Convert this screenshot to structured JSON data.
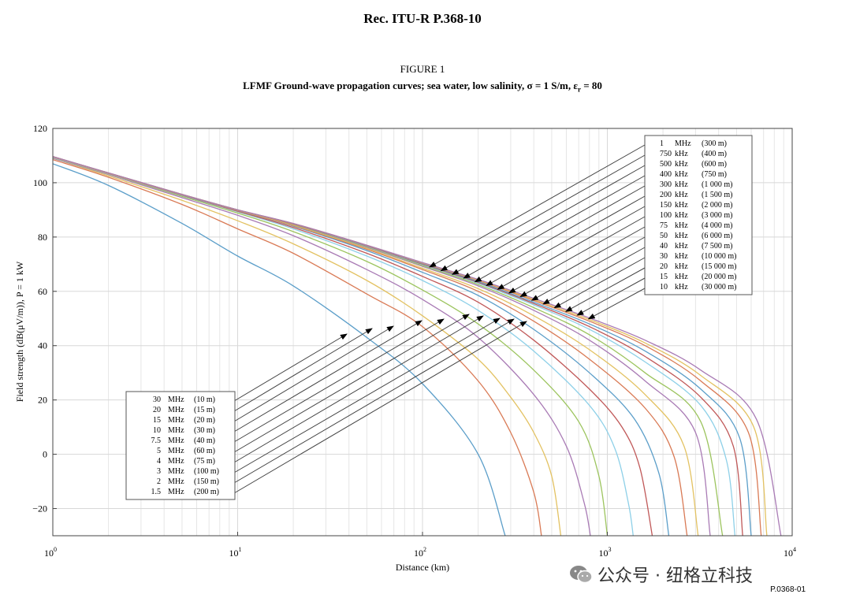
{
  "header": {
    "doc_title": "Rec.  ITU-R P.368-10",
    "figure_label": "FIGURE 1"
  },
  "figure_title_parts": [
    "LFMF Ground-wave propagation curves; sea water, low salinity, ",
    "σ",
    " = 1 S/m, ",
    "ε",
    "r",
    " = 80"
  ],
  "watermark": {
    "text": "公众号 · 纽格立科技",
    "icon": "wechat-icon"
  },
  "figure_ref": "P.0368-01",
  "chart_data": {
    "type": "line",
    "xlabel": "Distance (km)",
    "ylabel": "Field strength (dB(μV/m)), P = 1 kW",
    "x_scale": "log",
    "xlim": [
      1,
      10000
    ],
    "ylim": [
      -30,
      120
    ],
    "x_ticks": [
      {
        "value": 1,
        "base": "10",
        "exp": "0"
      },
      {
        "value": 10,
        "base": "10",
        "exp": "1"
      },
      {
        "value": 100,
        "base": "10",
        "exp": "2"
      },
      {
        "value": 1000,
        "base": "10",
        "exp": "3"
      },
      {
        "value": 10000,
        "base": "10",
        "exp": "4"
      }
    ],
    "y_ticks": [
      {
        "value": 120,
        "label": "120"
      },
      {
        "value": 100,
        "label": "100"
      },
      {
        "value": 80,
        "label": "80"
      },
      {
        "value": 60,
        "label": "60"
      },
      {
        "value": 40,
        "label": "40"
      },
      {
        "value": 20,
        "label": "20"
      },
      {
        "value": 0,
        "label": "0"
      },
      {
        "value": -20,
        "label": "−20"
      }
    ],
    "grid": true,
    "low_band_legend": {
      "placement": "lower-left",
      "entries": [
        {
          "freq": "30",
          "unit": "MHz",
          "wl": "(10 m)"
        },
        {
          "freq": "20",
          "unit": "MHz",
          "wl": "(15 m)"
        },
        {
          "freq": "15",
          "unit": "MHz",
          "wl": "(20 m)"
        },
        {
          "freq": "10",
          "unit": "MHz",
          "wl": "(30 m)"
        },
        {
          "freq": "7.5",
          "unit": "MHz",
          "wl": "(40 m)"
        },
        {
          "freq": "5",
          "unit": "MHz",
          "wl": "(60 m)"
        },
        {
          "freq": "4",
          "unit": "MHz",
          "wl": "(75 m)"
        },
        {
          "freq": "3",
          "unit": "MHz",
          "wl": "(100 m)"
        },
        {
          "freq": "2",
          "unit": "MHz",
          "wl": "(150 m)"
        },
        {
          "freq": "1.5",
          "unit": "MHz",
          "wl": "(200 m)"
        }
      ]
    },
    "high_band_legend": {
      "placement": "top-right",
      "entries": [
        {
          "freq": "1",
          "unit": "MHz",
          "wl": "(300 m)"
        },
        {
          "freq": "750",
          "unit": "kHz",
          "wl": "(400 m)"
        },
        {
          "freq": "500",
          "unit": "kHz",
          "wl": "(600 m)"
        },
        {
          "freq": "400",
          "unit": "kHz",
          "wl": "(750 m)"
        },
        {
          "freq": "300",
          "unit": "kHz",
          "wl": "(1 000 m)"
        },
        {
          "freq": "200",
          "unit": "kHz",
          "wl": "(1 500 m)"
        },
        {
          "freq": "150",
          "unit": "kHz",
          "wl": "(2 000 m)"
        },
        {
          "freq": "100",
          "unit": "kHz",
          "wl": "(3 000 m)"
        },
        {
          "freq": "75",
          "unit": "kHz",
          "wl": "(4 000 m)"
        },
        {
          "freq": "50",
          "unit": "kHz",
          "wl": "(6 000 m)"
        },
        {
          "freq": "40",
          "unit": "kHz",
          "wl": "(7 500 m)"
        },
        {
          "freq": "30",
          "unit": "kHz",
          "wl": "(10 000 m)"
        },
        {
          "freq": "20",
          "unit": "kHz",
          "wl": "(15 000 m)"
        },
        {
          "freq": "15",
          "unit": "kHz",
          "wl": "(20 000 m)"
        },
        {
          "freq": "10",
          "unit": "kHz",
          "wl": "(30 000 m)"
        }
      ]
    },
    "series": [
      {
        "freq": "30 MHz",
        "color": "#5b9ec9",
        "points": [
          [
            1,
            107
          ],
          [
            2,
            99
          ],
          [
            5,
            85
          ],
          [
            10,
            73
          ],
          [
            20,
            62
          ],
          [
            50,
            43
          ],
          [
            100,
            26
          ],
          [
            200,
            0
          ],
          [
            280,
            -30
          ]
        ]
      },
      {
        "freq": "20 MHz",
        "color": "#d97a55",
        "points": [
          [
            1,
            108.5
          ],
          [
            2,
            102
          ],
          [
            5,
            92
          ],
          [
            10,
            83
          ],
          [
            20,
            74
          ],
          [
            50,
            59
          ],
          [
            100,
            47
          ],
          [
            200,
            27
          ],
          [
            300,
            8
          ],
          [
            400,
            -14
          ],
          [
            440,
            -30
          ]
        ]
      },
      {
        "freq": "15 MHz",
        "color": "#e3c262",
        "points": [
          [
            1,
            109
          ],
          [
            2,
            102.5
          ],
          [
            5,
            93.5
          ],
          [
            10,
            86
          ],
          [
            20,
            77.5
          ],
          [
            50,
            64
          ],
          [
            100,
            51
          ],
          [
            200,
            35
          ],
          [
            300,
            21
          ],
          [
            400,
            8
          ],
          [
            500,
            -8
          ],
          [
            560,
            -30
          ]
        ]
      },
      {
        "freq": "10 MHz",
        "color": "#a97bb5",
        "points": [
          [
            1,
            109
          ],
          [
            2,
            103
          ],
          [
            5,
            94.5
          ],
          [
            10,
            88
          ],
          [
            20,
            80.5
          ],
          [
            50,
            68
          ],
          [
            100,
            57
          ],
          [
            200,
            43
          ],
          [
            400,
            22
          ],
          [
            600,
            3
          ],
          [
            750,
            -18
          ],
          [
            810,
            -30
          ]
        ]
      },
      {
        "freq": "7.5 MHz",
        "color": "#9cc45e",
        "points": [
          [
            1,
            109.2
          ],
          [
            2,
            103.2
          ],
          [
            5,
            95
          ],
          [
            10,
            88.8
          ],
          [
            20,
            82
          ],
          [
            50,
            71
          ],
          [
            100,
            60.5
          ],
          [
            200,
            48
          ],
          [
            400,
            31
          ],
          [
            700,
            12
          ],
          [
            900,
            -8
          ],
          [
            1000,
            -30
          ]
        ]
      },
      {
        "freq": "5 MHz",
        "color": "#8ed0e8",
        "points": [
          [
            1,
            109.3
          ],
          [
            2,
            103.3
          ],
          [
            5,
            95.3
          ],
          [
            10,
            89.3
          ],
          [
            20,
            83
          ],
          [
            50,
            73
          ],
          [
            100,
            64
          ],
          [
            200,
            53
          ],
          [
            400,
            38
          ],
          [
            800,
            18
          ],
          [
            1100,
            2
          ],
          [
            1300,
            -18
          ],
          [
            1380,
            -30
          ]
        ]
      },
      {
        "freq": "4 MHz",
        "color": "#c05858",
        "points": [
          [
            1,
            109.4
          ],
          [
            2,
            103.4
          ],
          [
            5,
            95.4
          ],
          [
            10,
            89.5
          ],
          [
            20,
            83.5
          ],
          [
            50,
            74
          ],
          [
            100,
            65.5
          ],
          [
            200,
            56
          ],
          [
            400,
            42
          ],
          [
            800,
            24
          ],
          [
            1200,
            10
          ],
          [
            1500,
            -5
          ],
          [
            1750,
            -30
          ]
        ]
      },
      {
        "freq": "3 MHz",
        "color": "#5b9ec9",
        "points": [
          [
            1,
            109.5
          ],
          [
            2,
            103.5
          ],
          [
            5,
            95.5
          ],
          [
            10,
            89.7
          ],
          [
            20,
            84
          ],
          [
            50,
            75
          ],
          [
            100,
            67
          ],
          [
            200,
            58.5
          ],
          [
            400,
            46
          ],
          [
            800,
            30
          ],
          [
            1400,
            13
          ],
          [
            1900,
            -7
          ],
          [
            2150,
            -30
          ]
        ]
      },
      {
        "freq": "2 MHz",
        "color": "#d97a55",
        "points": [
          [
            1,
            109.5
          ],
          [
            2,
            103.5
          ],
          [
            5,
            95.6
          ],
          [
            10,
            89.8
          ],
          [
            20,
            84.2
          ],
          [
            50,
            75.5
          ],
          [
            100,
            68
          ],
          [
            200,
            60
          ],
          [
            400,
            49
          ],
          [
            800,
            35
          ],
          [
            1600,
            17
          ],
          [
            2300,
            -1
          ],
          [
            2700,
            -30
          ]
        ]
      },
      {
        "freq": "1.5 MHz",
        "color": "#e3c262",
        "points": [
          [
            1,
            109.5
          ],
          [
            2,
            103.5
          ],
          [
            5,
            95.6
          ],
          [
            10,
            89.9
          ],
          [
            20,
            84.4
          ],
          [
            50,
            75.8
          ],
          [
            100,
            68.5
          ],
          [
            200,
            61
          ],
          [
            400,
            51
          ],
          [
            800,
            38.5
          ],
          [
            1600,
            22
          ],
          [
            2600,
            3
          ],
          [
            3100,
            -30
          ]
        ]
      },
      {
        "freq": "1 MHz",
        "color": "#a97bb5",
        "points": [
          [
            1,
            109.6
          ],
          [
            2,
            103.6
          ],
          [
            5,
            95.7
          ],
          [
            10,
            90
          ],
          [
            20,
            84.6
          ],
          [
            50,
            76.2
          ],
          [
            100,
            69.2
          ],
          [
            200,
            62
          ],
          [
            400,
            53
          ],
          [
            800,
            42
          ],
          [
            1600,
            27
          ],
          [
            3000,
            8
          ],
          [
            3600,
            -30
          ]
        ]
      },
      {
        "freq": "750 kHz",
        "color": "#9cc45e",
        "points": [
          [
            1,
            109.6
          ],
          [
            2,
            103.6
          ],
          [
            5,
            95.7
          ],
          [
            10,
            90
          ],
          [
            20,
            84.7
          ],
          [
            50,
            76.4
          ],
          [
            100,
            69.5
          ],
          [
            200,
            62.5
          ],
          [
            400,
            54
          ],
          [
            800,
            44
          ],
          [
            1600,
            30
          ],
          [
            3200,
            12
          ],
          [
            4200,
            -30
          ]
        ]
      },
      {
        "freq": "500 kHz",
        "color": "#8ed0e8",
        "points": [
          [
            1,
            109.6
          ],
          [
            2,
            103.6
          ],
          [
            5,
            95.7
          ],
          [
            10,
            90
          ],
          [
            20,
            84.8
          ],
          [
            50,
            76.6
          ],
          [
            100,
            69.8
          ],
          [
            200,
            63
          ],
          [
            400,
            55
          ],
          [
            800,
            46
          ],
          [
            1600,
            34
          ],
          [
            3200,
            18
          ],
          [
            4400,
            -2
          ],
          [
            4900,
            -30
          ]
        ]
      },
      {
        "freq": "400 kHz",
        "color": "#c05858",
        "points": [
          [
            1,
            109.6
          ],
          [
            2,
            103.6
          ],
          [
            5,
            95.7
          ],
          [
            10,
            90
          ],
          [
            20,
            84.8
          ],
          [
            50,
            76.7
          ],
          [
            100,
            70
          ],
          [
            200,
            63.3
          ],
          [
            400,
            55.5
          ],
          [
            800,
            47
          ],
          [
            1600,
            36
          ],
          [
            3200,
            21
          ],
          [
            4800,
            3
          ],
          [
            5400,
            -30
          ]
        ]
      },
      {
        "freq": "300 kHz",
        "color": "#5b9ec9",
        "points": [
          [
            1,
            109.6
          ],
          [
            2,
            103.6
          ],
          [
            5,
            95.7
          ],
          [
            10,
            90
          ],
          [
            20,
            84.9
          ],
          [
            50,
            76.8
          ],
          [
            100,
            70.2
          ],
          [
            200,
            63.6
          ],
          [
            400,
            56
          ],
          [
            800,
            48
          ],
          [
            1600,
            38
          ],
          [
            3200,
            24
          ],
          [
            5200,
            6
          ],
          [
            6000,
            -30
          ]
        ]
      },
      {
        "freq": "200 kHz",
        "color": "#d97a55",
        "points": [
          [
            1,
            109.6
          ],
          [
            2,
            103.6
          ],
          [
            5,
            95.7
          ],
          [
            10,
            90
          ],
          [
            20,
            84.9
          ],
          [
            50,
            76.9
          ],
          [
            100,
            70.4
          ],
          [
            200,
            64
          ],
          [
            400,
            56.6
          ],
          [
            800,
            49
          ],
          [
            1600,
            40
          ],
          [
            3200,
            27
          ],
          [
            5800,
            8
          ],
          [
            6800,
            -30
          ]
        ]
      },
      {
        "freq": "150 kHz",
        "color": "#e3c262",
        "points": [
          [
            1,
            109.6
          ],
          [
            2,
            103.6
          ],
          [
            5,
            95.7
          ],
          [
            10,
            90
          ],
          [
            20,
            85
          ],
          [
            50,
            77
          ],
          [
            100,
            70.5
          ],
          [
            200,
            64.2
          ],
          [
            400,
            57
          ],
          [
            800,
            49.6
          ],
          [
            1600,
            41
          ],
          [
            3200,
            29
          ],
          [
            6200,
            10
          ],
          [
            7300,
            -30
          ]
        ]
      },
      {
        "freq": "100 kHz",
        "color": "#a97bb5",
        "points": [
          [
            1,
            109.6
          ],
          [
            2,
            103.6
          ],
          [
            5,
            95.7
          ],
          [
            10,
            90
          ],
          [
            20,
            85
          ],
          [
            50,
            77
          ],
          [
            100,
            70.6
          ],
          [
            200,
            64.4
          ],
          [
            400,
            57.4
          ],
          [
            800,
            50.2
          ],
          [
            1600,
            42
          ],
          [
            3200,
            31
          ],
          [
            6400,
            13
          ],
          [
            8700,
            -30
          ]
        ]
      }
    ]
  }
}
